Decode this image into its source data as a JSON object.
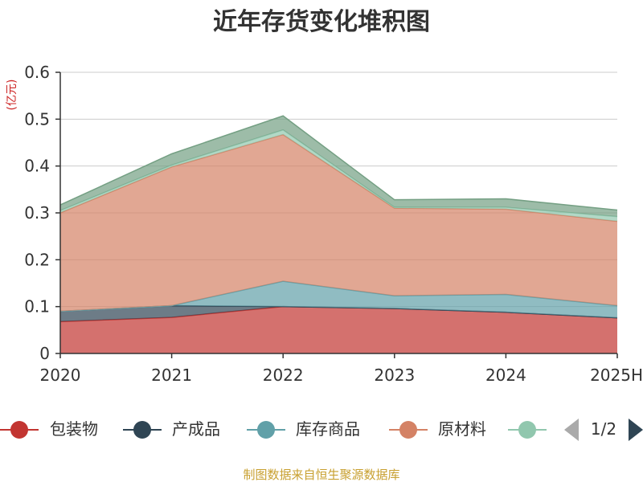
{
  "chart_data": {
    "type": "area",
    "title": "近年存货变化堆积图",
    "unit_label": "(亿元)",
    "categories": [
      "2020",
      "2021",
      "2022",
      "2023",
      "2024",
      "2025H"
    ],
    "ylim": [
      0,
      0.6
    ],
    "yticks": [
      0,
      0.1,
      0.2,
      0.3,
      0.4,
      0.5,
      0.6
    ],
    "ytick_labels": [
      "0",
      "0.1",
      "0.2",
      "0.3",
      "0.4",
      "0.5",
      "0.6"
    ],
    "stacked": true,
    "grid": true,
    "series": [
      {
        "name": "包装物",
        "color": "#c23531",
        "values": [
          0.068,
          0.077,
          0.1,
          0.096,
          0.088,
          0.076
        ]
      },
      {
        "name": "产成品",
        "color": "#2f4554",
        "values": [
          0.022,
          0.025,
          0.0,
          0.0,
          0.0,
          0.0
        ]
      },
      {
        "name": "库存商品",
        "color": "#61a0a8",
        "values": [
          0.0,
          0.0,
          0.054,
          0.027,
          0.038,
          0.026
        ]
      },
      {
        "name": "原材料",
        "color": "#d48265",
        "values": [
          0.21,
          0.296,
          0.313,
          0.187,
          0.182,
          0.18
        ]
      },
      {
        "name": "",
        "color": "#91c7ae",
        "values": [
          0.005,
          0.004,
          0.01,
          0.002,
          0.004,
          0.01
        ]
      },
      {
        "name": "",
        "color": "#749f83",
        "values": [
          0.012,
          0.024,
          0.03,
          0.016,
          0.018,
          0.014
        ]
      }
    ],
    "legend": {
      "position": "bottom",
      "page": "1/2"
    },
    "source": "制图数据来自恒生聚源数据库"
  }
}
